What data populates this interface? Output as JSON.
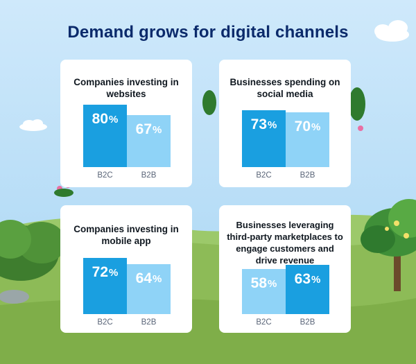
{
  "title": "Demand grows for digital channels",
  "colors": {
    "dark_bar": "#1a9fe0",
    "light_bar": "#8fd3f7",
    "title": "#0b2a6b"
  },
  "chart_data": [
    {
      "type": "bar",
      "title": "Companies investing in websites",
      "categories": [
        "B2C",
        "B2B"
      ],
      "values": [
        80,
        67
      ],
      "value_labels": [
        "80",
        "67"
      ],
      "unit": "%"
    },
    {
      "type": "bar",
      "title": "Businesses spending on social media",
      "categories": [
        "B2C",
        "B2B"
      ],
      "values": [
        73,
        70
      ],
      "value_labels": [
        "73",
        "70"
      ],
      "unit": "%"
    },
    {
      "type": "bar",
      "title": "Companies investing in mobile app",
      "categories": [
        "B2C",
        "B2B"
      ],
      "values": [
        72,
        64
      ],
      "value_labels": [
        "72",
        "64"
      ],
      "unit": "%"
    },
    {
      "type": "bar",
      "title": "Businesses leveraging third-party marketplaces to engage customers and drive revenue",
      "categories": [
        "B2C",
        "B2B"
      ],
      "values": [
        58,
        63
      ],
      "value_labels": [
        "58",
        "63"
      ],
      "unit": "%"
    }
  ]
}
